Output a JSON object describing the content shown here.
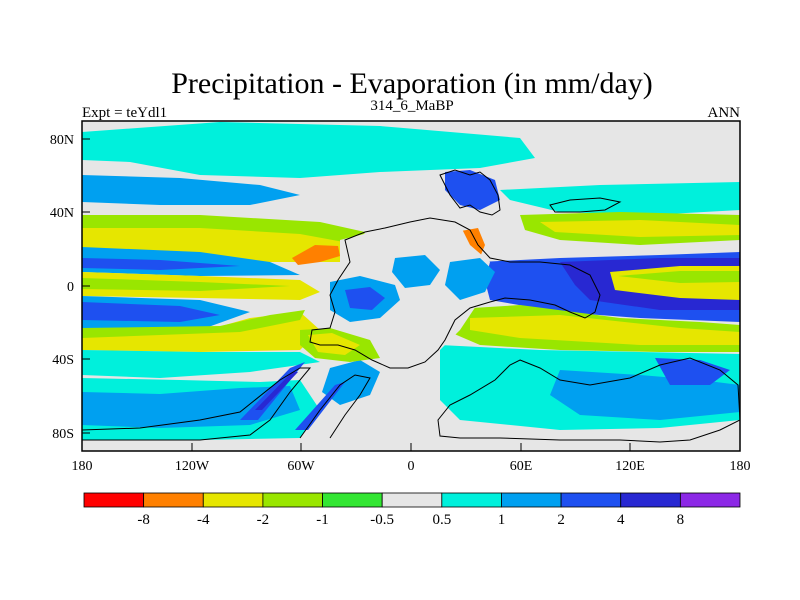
{
  "title": "Precipitation - Evaporation (in mm/day)",
  "subtitle_left": "Expt = teYdl1",
  "subtitle_center": "314_6_MaBP",
  "subtitle_right": "ANN",
  "map": {
    "lat_ticks": [
      "80N",
      "40N",
      "0",
      "40S",
      "80S"
    ],
    "lon_ticks": [
      "180",
      "120W",
      "60W",
      "0",
      "60E",
      "120E",
      "180"
    ],
    "lat_range": [
      -90,
      90
    ],
    "lon_range": [
      -180,
      180
    ]
  },
  "colorbar": {
    "colors": [
      "#ff0000",
      "#ff8000",
      "#e6e600",
      "#99e600",
      "#33e633",
      "#e6e6e6",
      "#00f0dc",
      "#00a0f0",
      "#1e50f0",
      "#2828d2",
      "#8c28e6"
    ],
    "labels": [
      "-8",
      "-4",
      "-2",
      "-1",
      "-0.5",
      "0.5",
      "1",
      "2",
      "4",
      "8"
    ]
  },
  "palette": {
    "neutral": "#e6e6e6",
    "cyan": "#00f0dc",
    "lightblue": "#00a0f0",
    "blue": "#1e50f0",
    "darkblue": "#2828d2",
    "yellow": "#e6e600",
    "lightgreen": "#99e600",
    "green": "#33e633",
    "orange": "#ff8000"
  }
}
